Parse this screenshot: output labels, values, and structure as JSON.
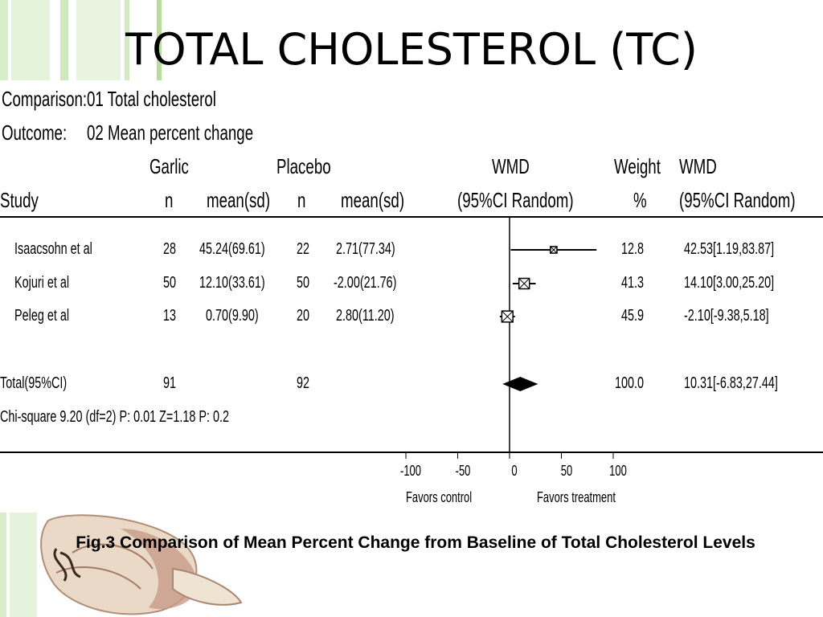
{
  "slide_title": "TOTAL CHOLESTEROL (TC)",
  "comparison": {
    "label": "Comparison:",
    "value": "01 Total cholesterol"
  },
  "outcome": {
    "label": "Outcome:",
    "value": "02 Mean percent change"
  },
  "headers": {
    "garlic": "Garlic",
    "placebo": "Placebo",
    "wmd": "WMD",
    "ci_random": "(95%CI Random)",
    "weight": "Weight",
    "pct": "%",
    "wmd2": "WMD",
    "ci_random2": "(95%CI Random)",
    "study": "Study",
    "n1": "n",
    "mean1": "mean(sd)",
    "n2": "n",
    "mean2": "mean(sd)"
  },
  "chart_data": {
    "type": "forest",
    "xlim": [
      -100,
      100
    ],
    "ticks": [
      "-100",
      "-50",
      "0",
      "50",
      "100"
    ],
    "tick_values": [
      -100,
      -50,
      0,
      50,
      100
    ],
    "favors_left": "Favors control",
    "favors_right": "Favors treatment",
    "studies": [
      {
        "name": "Isaacsohn et al",
        "n_garlic": "28",
        "mean_garlic": "45.24(69.61)",
        "n_placebo": "22",
        "mean_placebo": "2.71(77.34)",
        "weight": "12.8",
        "ci_text": "42.53[1.19,83.87]",
        "wmd": 42.53,
        "lo": 1.19,
        "hi": 83.87
      },
      {
        "name": "Kojuri et al",
        "n_garlic": "50",
        "mean_garlic": "12.10(33.61)",
        "n_placebo": "50",
        "mean_placebo": "-2.00(21.76)",
        "weight": "41.3",
        "ci_text": "14.10[3.00,25.20]",
        "wmd": 14.1,
        "lo": 3.0,
        "hi": 25.2
      },
      {
        "name": "Peleg et al",
        "n_garlic": "13",
        "mean_garlic": "0.70(9.90)",
        "n_placebo": "20",
        "mean_placebo": "2.80(11.20)",
        "weight": "45.9",
        "ci_text": "-2.10[-9.38,5.18]",
        "wmd": -2.1,
        "lo": -9.38,
        "hi": 5.18
      }
    ],
    "total": {
      "name": "Total(95%CI)",
      "n_garlic": "91",
      "n_placebo": "92",
      "weight": "100.0",
      "ci_text": "10.31[-6.83,27.44]",
      "wmd": 10.31,
      "lo": -6.83,
      "hi": 27.44
    },
    "heterogeneity": "Chi-square 9.20 (df=2) P: 0.01   Z=1.18 P: 0.2"
  },
  "caption": "Fig.3 Comparison of Mean Percent Change from Baseline of Total Cholesterol Levels",
  "colors": {
    "stripe_light": "#d9eecb",
    "stripe_mid": "#b6dc9a",
    "garlic_skin": "#e9d8c4",
    "garlic_shade": "#b48a78"
  }
}
